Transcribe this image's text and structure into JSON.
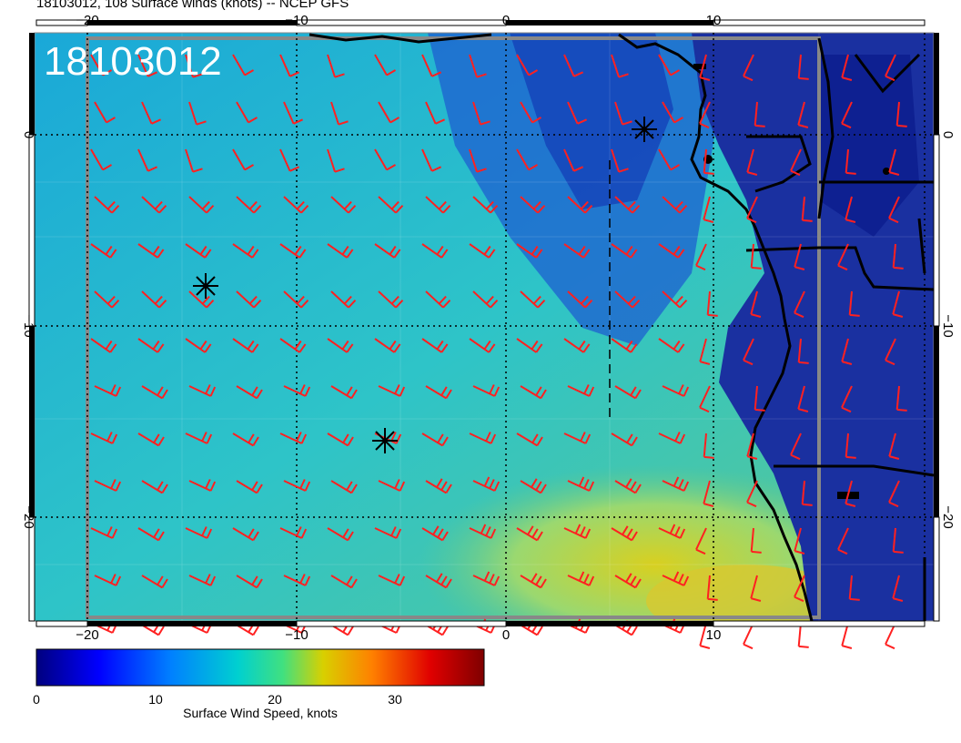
{
  "title": "18103012, 108 Surface winds (knots) -- NCEP GFS",
  "stamp": "18103012",
  "map": {
    "lon_ticks": [
      "−20",
      "−10",
      "0",
      "10"
    ],
    "lat_ticks": [
      "0",
      "−10",
      "−20"
    ],
    "land_color": "#1a30a0",
    "ocean_colors": [
      "#0a1a8a",
      "#1e5fd0",
      "#1aa8d8",
      "#35c8c0",
      "#8ad88a",
      "#d8d020"
    ],
    "barb_color": "#ff2020",
    "coast_color": "#000000",
    "markers": [
      "asterisk-marker-1",
      "asterisk-marker-2",
      "asterisk-marker-3"
    ]
  },
  "colorbar": {
    "caption": "Surface Wind Speed, knots",
    "ticks": [
      "0",
      "10",
      "20",
      "30"
    ],
    "colors": [
      "#00007f",
      "#0000ff",
      "#0080ff",
      "#00d0d0",
      "#40e080",
      "#d8d000",
      "#ff8000",
      "#e00000",
      "#7f0000"
    ]
  }
}
